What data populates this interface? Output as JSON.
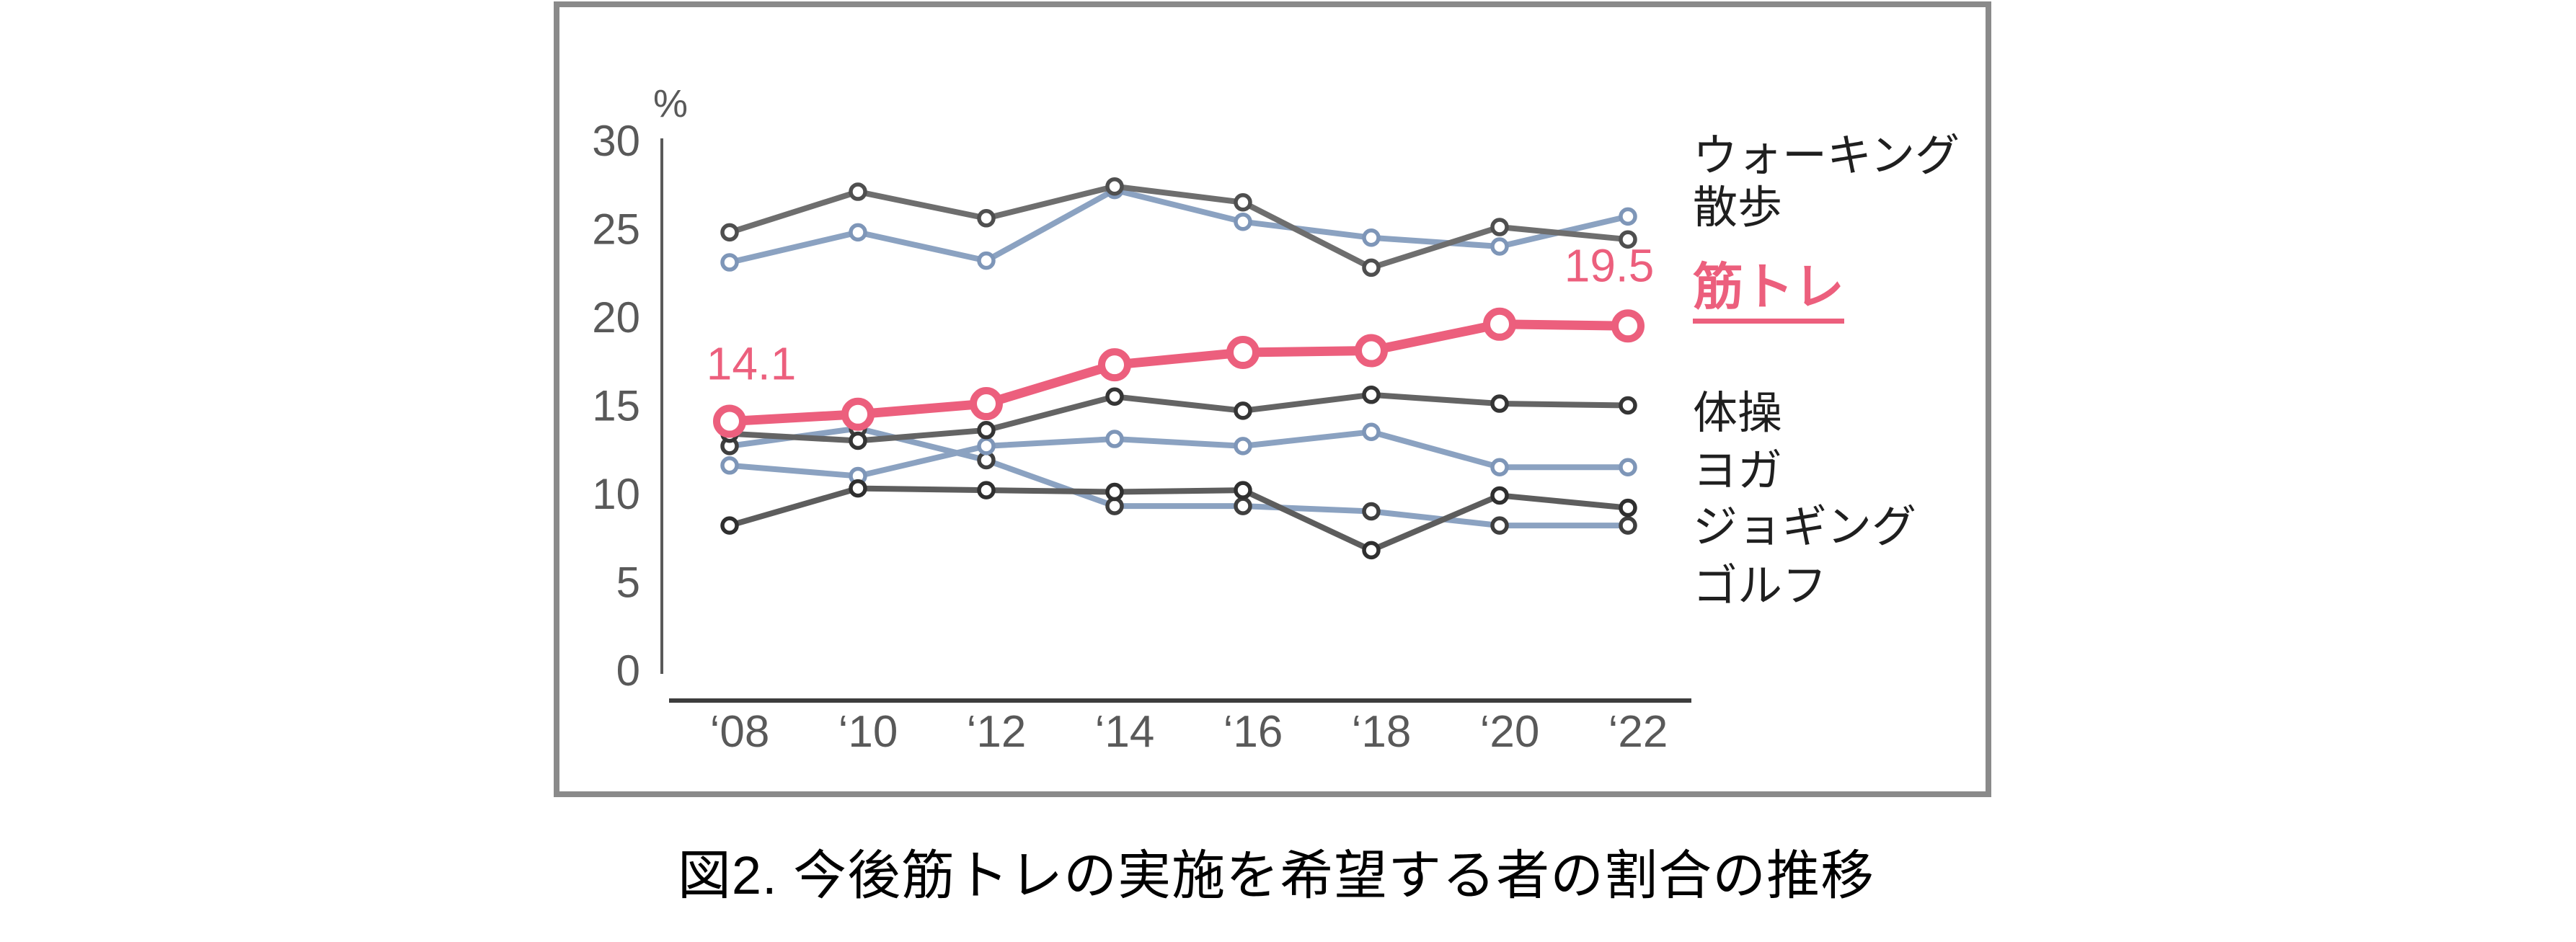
{
  "chart_frame": {
    "border_color": "#8a8a8a",
    "background": "#ffffff"
  },
  "chart_data": {
    "type": "line",
    "unit_label": "%",
    "x_tick_labels": [
      "‘08",
      "‘10",
      "‘12",
      "‘14",
      "‘16",
      "‘18",
      "‘20",
      "‘22"
    ],
    "y_ticks": [
      0,
      5,
      10,
      15,
      20,
      25,
      30
    ],
    "ylim": [
      0,
      30
    ],
    "grid": false,
    "legend_position": "right",
    "series": [
      {
        "name": "ウォーキング",
        "line_color": "#6e6e6e",
        "marker_color": "#4f4f4f",
        "highlight": false,
        "values": [
          24.8,
          27.1,
          25.6,
          27.4,
          26.5,
          22.8,
          25.1,
          24.4
        ]
      },
      {
        "name": "散歩",
        "line_color": "#8ba2c1",
        "marker_color": "#7e96b8",
        "highlight": false,
        "values": [
          23.1,
          24.8,
          23.2,
          27.2,
          25.4,
          24.5,
          24.0,
          25.7
        ]
      },
      {
        "name": "体操",
        "line_color": "#646464",
        "marker_color": "#353535",
        "highlight": false,
        "values": [
          13.4,
          13.0,
          13.6,
          15.5,
          14.7,
          15.6,
          15.1,
          15.0
        ]
      },
      {
        "name": "ヨガ",
        "line_color": "#8ba2c1",
        "marker_color": "#7e96b8",
        "highlight": false,
        "values": [
          11.6,
          11.0,
          12.7,
          13.1,
          12.7,
          13.5,
          11.5,
          11.5
        ]
      },
      {
        "name": "ジョギング",
        "line_color": "#5d5d5d",
        "marker_color": "#2f2f2f",
        "highlight": false,
        "values": [
          8.2,
          10.3,
          10.2,
          10.1,
          10.2,
          6.8,
          9.9,
          9.2
        ]
      },
      {
        "name": "ゴルフ",
        "line_color": "#8ba2c1",
        "marker_color": "#3f3f3f",
        "highlight": false,
        "values": [
          12.7,
          13.7,
          11.9,
          9.3,
          9.3,
          9.0,
          8.2,
          8.2
        ]
      },
      {
        "name": "筋トレ",
        "line_color": "#ec5f7d",
        "marker_color": "#ec5f7d",
        "highlight": true,
        "values": [
          14.1,
          14.5,
          15.1,
          17.3,
          18.0,
          18.1,
          19.6,
          19.5
        ]
      }
    ],
    "annotations": [
      {
        "text": "14.1",
        "series": "筋トレ",
        "point_index": 0,
        "color": "#ec5f7d"
      },
      {
        "text": "19.5",
        "series": "筋トレ",
        "point_index": 7,
        "color": "#ec5f7d"
      }
    ]
  },
  "caption": {
    "text": "図2. 今後筋トレの実施を希望する者の割合の推移"
  }
}
